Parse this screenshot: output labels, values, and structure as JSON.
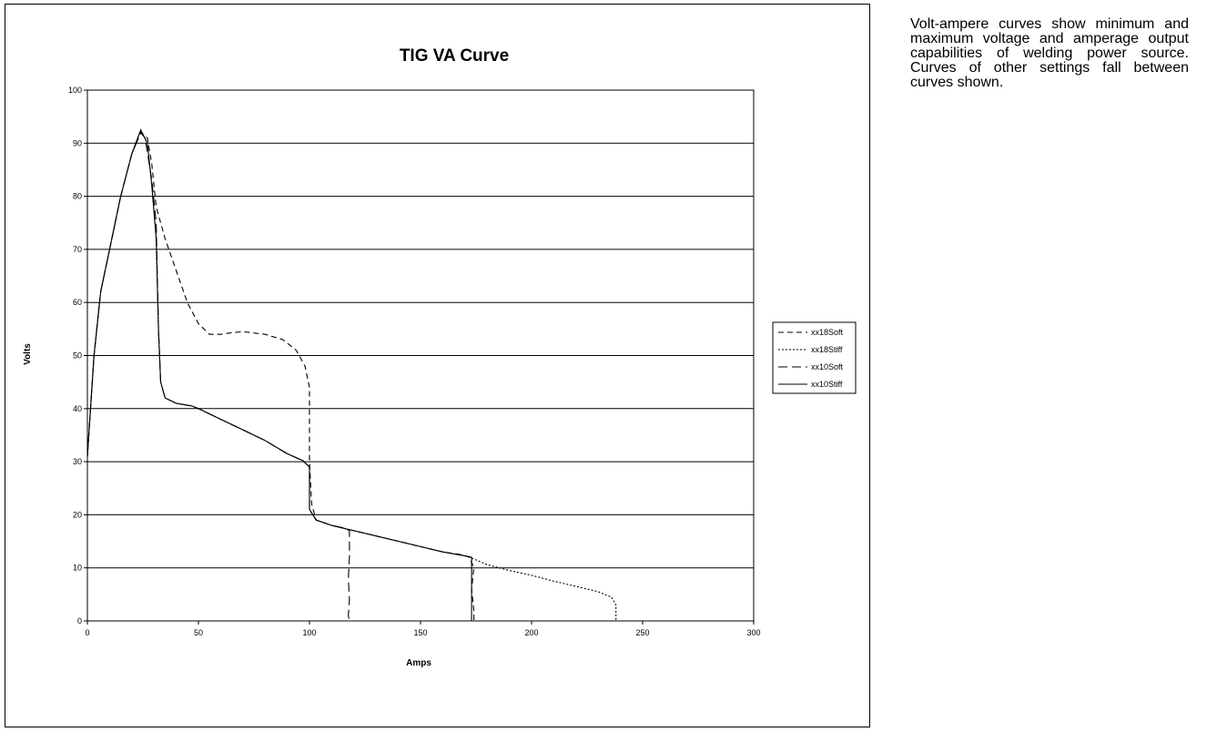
{
  "description": "Volt-ampere curves show minimum and maximum voltage and amperage output capabilities of welding power source. Curves of other settings fall between curves shown.",
  "chart_data": {
    "type": "line",
    "title": "TIG VA Curve",
    "xlabel": "Amps",
    "ylabel": "Volts",
    "xlim": [
      0,
      300
    ],
    "ylim": [
      0,
      100
    ],
    "xticks": [
      0,
      50,
      100,
      150,
      200,
      250,
      300
    ],
    "yticks": [
      0,
      10,
      20,
      30,
      40,
      50,
      60,
      70,
      80,
      90,
      100
    ],
    "grid": "horizontal major gridlines",
    "legend_position": "right",
    "series": [
      {
        "name": "xx18Soft",
        "dash": "6,4",
        "points": [
          [
            0,
            31
          ],
          [
            3,
            50
          ],
          [
            6,
            62
          ],
          [
            10,
            70
          ],
          [
            15,
            80
          ],
          [
            20,
            88
          ],
          [
            24,
            92
          ],
          [
            27,
            91
          ],
          [
            29,
            86
          ],
          [
            31,
            78
          ],
          [
            35,
            72
          ],
          [
            40,
            66
          ],
          [
            45,
            60
          ],
          [
            50,
            56
          ],
          [
            55,
            54
          ],
          [
            60,
            54
          ],
          [
            65,
            54.3
          ],
          [
            70,
            54.5
          ],
          [
            80,
            54
          ],
          [
            88,
            53
          ],
          [
            94,
            51
          ],
          [
            98,
            48
          ],
          [
            100,
            44
          ],
          [
            100,
            30
          ],
          [
            101,
            22
          ],
          [
            103,
            19
          ],
          [
            110,
            18
          ],
          [
            120,
            17
          ],
          [
            130,
            16
          ],
          [
            140,
            15
          ],
          [
            150,
            14
          ],
          [
            160,
            13
          ],
          [
            168,
            12.5
          ],
          [
            172,
            12
          ],
          [
            174,
            10
          ],
          [
            173,
            6
          ],
          [
            174,
            2
          ],
          [
            174,
            0
          ]
        ]
      },
      {
        "name": "xx18Stiff",
        "dash": "2,2",
        "points": [
          [
            0,
            31
          ],
          [
            3,
            50
          ],
          [
            6,
            62
          ],
          [
            10,
            70
          ],
          [
            15,
            80
          ],
          [
            20,
            88
          ],
          [
            24,
            92.5
          ],
          [
            27,
            90
          ],
          [
            29,
            82
          ],
          [
            31,
            72
          ],
          [
            32,
            55
          ],
          [
            33,
            45
          ],
          [
            35,
            42
          ],
          [
            40,
            41
          ],
          [
            47,
            40.5
          ],
          [
            50,
            40
          ],
          [
            60,
            38
          ],
          [
            70,
            36
          ],
          [
            80,
            34
          ],
          [
            90,
            31.5
          ],
          [
            97,
            30.2
          ],
          [
            100,
            29
          ],
          [
            100,
            21
          ],
          [
            103,
            19
          ],
          [
            110,
            18
          ],
          [
            120,
            17
          ],
          [
            130,
            16
          ],
          [
            140,
            15
          ],
          [
            150,
            14
          ],
          [
            160,
            13
          ],
          [
            170,
            12.3
          ],
          [
            175,
            11.5
          ],
          [
            180,
            10.6
          ],
          [
            190,
            9.5
          ],
          [
            200,
            8.6
          ],
          [
            210,
            7.5
          ],
          [
            220,
            6.5
          ],
          [
            230,
            5.5
          ],
          [
            236,
            4.5
          ],
          [
            238,
            3
          ],
          [
            238,
            0
          ]
        ]
      },
      {
        "name": "xx10Soft",
        "dash": "10,5",
        "points": [
          [
            0,
            31
          ],
          [
            3,
            50
          ],
          [
            6,
            62
          ],
          [
            10,
            70
          ],
          [
            15,
            80
          ],
          [
            20,
            88
          ],
          [
            24,
            92
          ],
          [
            26,
            91
          ],
          [
            29,
            83
          ],
          [
            31,
            75
          ],
          [
            32,
            55
          ],
          [
            33,
            45
          ],
          [
            35,
            42
          ],
          [
            40,
            41
          ],
          [
            47,
            40.5
          ],
          [
            50,
            40
          ],
          [
            60,
            38
          ],
          [
            70,
            36
          ],
          [
            80,
            34
          ],
          [
            90,
            31.5
          ],
          [
            97,
            30.2
          ],
          [
            100,
            29
          ],
          [
            100,
            21
          ],
          [
            103,
            19
          ],
          [
            110,
            18
          ],
          [
            116,
            17.5
          ],
          [
            118,
            17
          ],
          [
            118,
            12
          ],
          [
            117.5,
            8
          ],
          [
            118,
            4
          ],
          [
            117.5,
            1
          ],
          [
            118,
            0
          ]
        ]
      },
      {
        "name": "xx10Stiff",
        "dash": "",
        "points": [
          [
            0,
            31
          ],
          [
            3,
            50
          ],
          [
            6,
            62
          ],
          [
            10,
            70
          ],
          [
            15,
            80
          ],
          [
            20,
            88
          ],
          [
            24,
            92.5
          ],
          [
            27,
            90
          ],
          [
            29,
            82
          ],
          [
            31,
            72
          ],
          [
            32,
            55
          ],
          [
            33,
            45
          ],
          [
            35,
            42
          ],
          [
            40,
            41
          ],
          [
            47,
            40.5
          ],
          [
            50,
            40
          ],
          [
            60,
            38
          ],
          [
            70,
            36
          ],
          [
            80,
            34
          ],
          [
            90,
            31.5
          ],
          [
            97,
            30.2
          ],
          [
            100,
            29
          ],
          [
            100,
            21
          ],
          [
            103,
            19
          ],
          [
            110,
            18
          ],
          [
            120,
            17
          ],
          [
            130,
            16
          ],
          [
            140,
            15
          ],
          [
            150,
            14
          ],
          [
            160,
            13
          ],
          [
            168,
            12.4
          ],
          [
            173,
            12
          ],
          [
            173,
            0
          ]
        ]
      }
    ]
  }
}
